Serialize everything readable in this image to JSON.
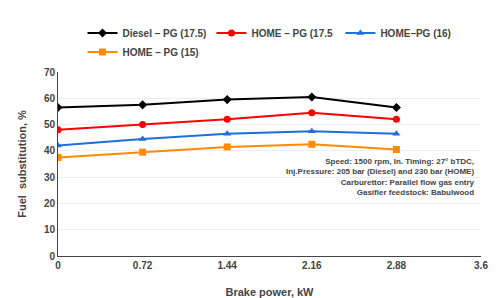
{
  "chart_data": {
    "type": "line",
    "x": [
      0,
      0.72,
      1.44,
      2.16,
      2.88
    ],
    "series": [
      {
        "name": "Diesel – PG (​17.5)",
        "color": "black",
        "marker": "diamond",
        "values": [
          56.5,
          57.5,
          59.5,
          60.5,
          56.5
        ]
      },
      {
        "name": "HOME – PG (17.5",
        "color": "#FF0000",
        "marker": "circle",
        "values": [
          48.0,
          50.0,
          52.0,
          54.5,
          52.0
        ]
      },
      {
        "name": "HOME–PG (16)",
        "color": "#1E6FD6",
        "marker": "triangle-up",
        "values": [
          42.0,
          44.5,
          46.5,
          47.5,
          46.5
        ]
      },
      {
        "name": "HOME – PG (15)",
        "color": "#FF8C00",
        "marker": "square",
        "values": [
          37.5,
          39.5,
          41.5,
          42.5,
          40.5
        ]
      }
    ],
    "xlim": [
      0,
      3.6
    ],
    "ylim": [
      0,
      70
    ],
    "xticks": [
      0,
      0.72,
      1.44,
      2.16,
      2.88,
      3.6
    ],
    "yticks": [
      0,
      10,
      20,
      30,
      40,
      50,
      60,
      70
    ],
    "xlabel": "Brake power, kW",
    "ylabel": "Fuel  substitution, %",
    "annotations": [
      "Speed: 1500 rpm, In. Timing: 27° bTDC,\nInj.Pressure: 205 bar (Diesel) and 230 bar (HOME)\nCarburettor: Parallel flow gas entry\nGasifier feedstock: Babulwood"
    ],
    "grid": "y",
    "legend": "top"
  }
}
